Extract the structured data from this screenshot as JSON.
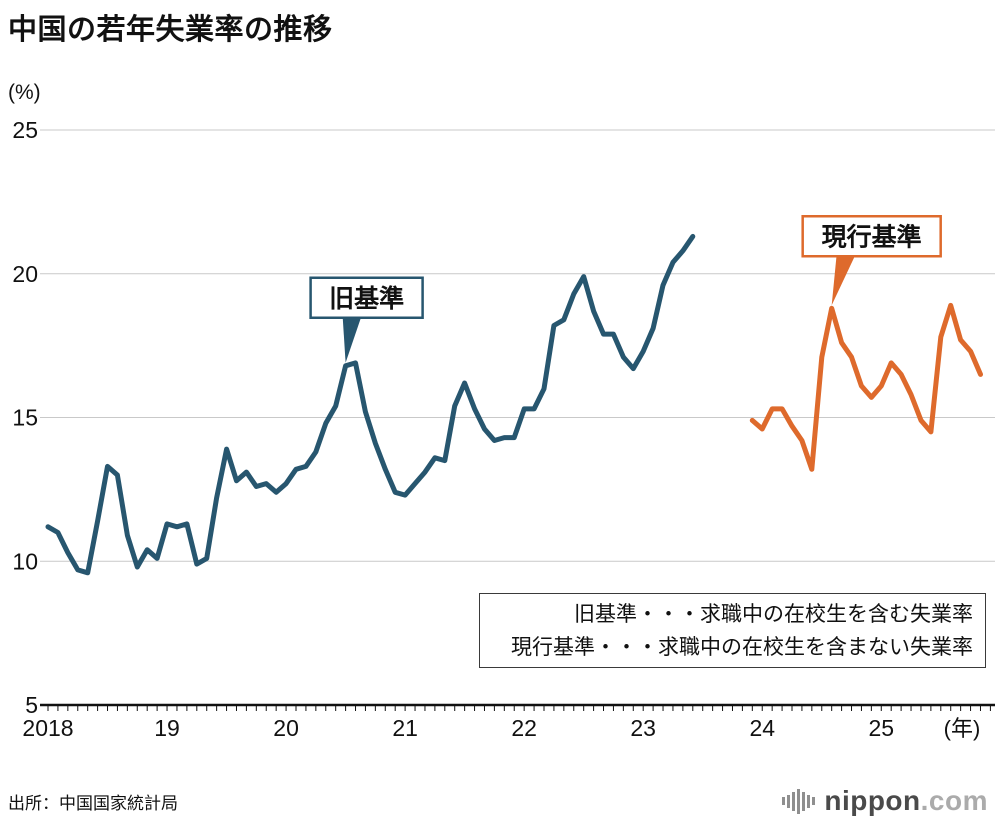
{
  "page": {
    "title": "中国の若年失業率の推移",
    "source": "出所：中国国家統計局",
    "logo": {
      "name": "nippon",
      "suffix": ".com"
    }
  },
  "chart_data": {
    "type": "line",
    "title": "中国の若年失業率の推移",
    "unit_label": "(%)",
    "x_axis_unit": "(年)",
    "ylim": [
      5,
      25
    ],
    "y_ticks": [
      25,
      20,
      15,
      10,
      5
    ],
    "grid": true,
    "x_tick_interval": "monthly",
    "months_total": 96,
    "x_start_year": 2018,
    "x_year_labels": [
      "2018",
      "19",
      "20",
      "21",
      "22",
      "23",
      "24",
      "25"
    ],
    "series": [
      {
        "name": "旧基準",
        "color": "#27566F",
        "start_month_index": 0,
        "start_period": "2018-01",
        "end_period": "2023-06",
        "values": [
          11.2,
          11.0,
          10.3,
          9.7,
          9.6,
          11.4,
          13.3,
          13.0,
          10.9,
          9.8,
          10.4,
          10.1,
          11.3,
          11.2,
          11.3,
          9.9,
          10.1,
          12.2,
          13.9,
          12.8,
          13.1,
          12.6,
          12.7,
          12.4,
          12.7,
          13.2,
          13.3,
          13.8,
          14.8,
          15.4,
          16.8,
          16.9,
          15.2,
          14.1,
          13.2,
          12.4,
          12.3,
          12.7,
          13.1,
          13.6,
          13.5,
          15.4,
          16.2,
          15.3,
          14.6,
          14.2,
          14.3,
          14.3,
          15.3,
          15.3,
          16.0,
          18.2,
          18.4,
          19.3,
          19.9,
          18.7,
          17.9,
          17.9,
          17.1,
          16.7,
          17.3,
          18.1,
          19.6,
          20.4,
          20.8,
          21.3
        ]
      },
      {
        "name": "現行基準",
        "color": "#DE6A2C",
        "start_month_index": 71,
        "start_period": "2023-12",
        "end_period": "2025-11",
        "values": [
          14.9,
          14.6,
          15.3,
          15.3,
          14.7,
          14.2,
          13.2,
          17.1,
          18.8,
          17.6,
          17.1,
          16.1,
          15.7,
          16.1,
          16.9,
          16.5,
          15.8,
          14.9,
          14.5,
          17.8,
          18.9,
          17.7,
          17.3,
          16.5
        ]
      }
    ],
    "annotations": [
      {
        "label": "旧基準",
        "color": "#27566F",
        "anchor_month": 30,
        "anchor_value": 16.8,
        "offset_x": 21,
        "gap": 48,
        "ptr_shift": 0
      },
      {
        "label": "現行基準",
        "color": "#DE6A2C",
        "anchor_month": 79,
        "anchor_value": 18.8,
        "offset_x": 40,
        "gap": 52,
        "ptr_shift": 8
      }
    ],
    "legend_note": {
      "lines": [
        "旧基準・・・求職中の在校生を含む失業率",
        "現行基準・・・求職中の在校生を含まない失業率"
      ]
    }
  }
}
